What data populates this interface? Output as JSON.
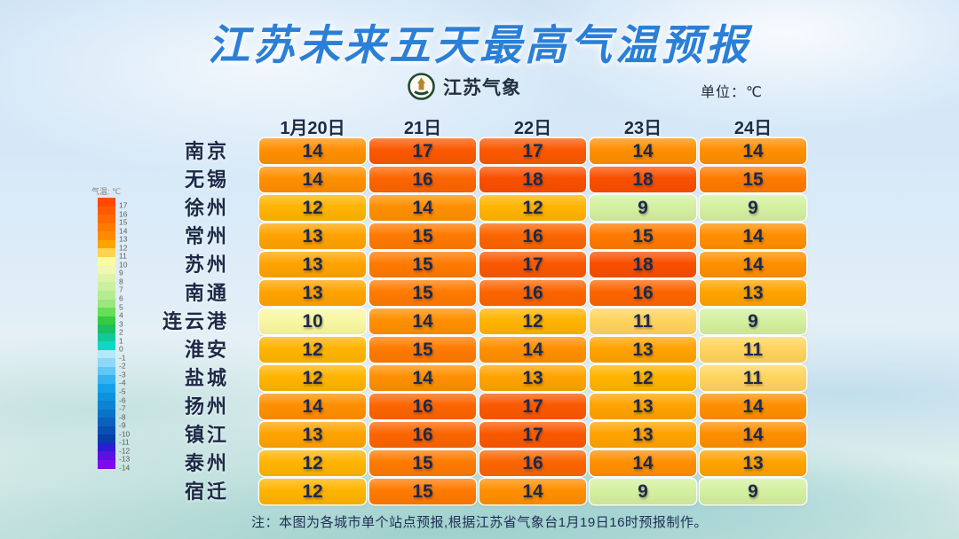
{
  "page": {
    "title": "江苏未来五天最高气温预报",
    "logo_label": "江苏气象",
    "unit_label": "单位：℃",
    "note": "注：本图为各城市单个站点预报,根据江苏省气象台1月19日16时预报制作。"
  },
  "legend": {
    "title": "气温: ℃",
    "entries": [
      {
        "label": "17",
        "color": "#ff4a00"
      },
      {
        "label": "16",
        "color": "#ff5a00"
      },
      {
        "label": "15",
        "color": "#ff6a00"
      },
      {
        "label": "14",
        "color": "#ff7b00"
      },
      {
        "label": "13",
        "color": "#ff8c00"
      },
      {
        "label": "12",
        "color": "#ffa300"
      },
      {
        "label": "11",
        "color": "#ffd24f"
      },
      {
        "label": "10",
        "color": "#fdfb9e"
      },
      {
        "label": "9",
        "color": "#eff8b2"
      },
      {
        "label": "8",
        "color": "#ddf4a8"
      },
      {
        "label": "7",
        "color": "#cbf09e"
      },
      {
        "label": "6",
        "color": "#b7eb92"
      },
      {
        "label": "5",
        "color": "#9ce680"
      },
      {
        "label": "4",
        "color": "#66de55"
      },
      {
        "label": "3",
        "color": "#35cc3f"
      },
      {
        "label": "2",
        "color": "#1dbf63"
      },
      {
        "label": "1",
        "color": "#12c998"
      },
      {
        "label": "0",
        "color": "#0ed8c5"
      },
      {
        "label": "-1",
        "color": "#b4e8fb"
      },
      {
        "label": "-2",
        "color": "#8cd8f8"
      },
      {
        "label": "-3",
        "color": "#60c6f5"
      },
      {
        "label": "-4",
        "color": "#35b2f0"
      },
      {
        "label": "-5",
        "color": "#17a1ea"
      },
      {
        "label": "-6",
        "color": "#0e92de"
      },
      {
        "label": "-7",
        "color": "#0c83d3"
      },
      {
        "label": "-8",
        "color": "#0a73c8"
      },
      {
        "label": "-9",
        "color": "#0962bd"
      },
      {
        "label": "-10",
        "color": "#0750b2"
      },
      {
        "label": "-11",
        "color": "#053fa7"
      },
      {
        "label": "-12",
        "color": "#2b1dd6"
      },
      {
        "label": "-13",
        "color": "#5b10e4"
      },
      {
        "label": "-14",
        "color": "#7f0af0"
      }
    ]
  },
  "temp_colors": {
    "9": "#d4f0a0",
    "10": "#f8f8a4",
    "11": "#ffd45e",
    "12": "#ffb400",
    "13": "#ffa300",
    "14": "#ff8f00",
    "15": "#ff7a00",
    "16": "#fc6500",
    "17": "#fb5800",
    "18": "#fa4f00"
  },
  "chart_data": {
    "type": "heatmap",
    "title": "江苏未来五天最高气温预报",
    "unit": "℃",
    "x": [
      "1月20日",
      "21日",
      "22日",
      "23日",
      "24日"
    ],
    "series": [
      {
        "name": "南京",
        "values": [
          14,
          17,
          17,
          14,
          14
        ]
      },
      {
        "name": "无锡",
        "values": [
          14,
          16,
          18,
          18,
          15
        ]
      },
      {
        "name": "徐州",
        "values": [
          12,
          14,
          12,
          9,
          9
        ]
      },
      {
        "name": "常州",
        "values": [
          13,
          15,
          16,
          15,
          14
        ]
      },
      {
        "name": "苏州",
        "values": [
          13,
          15,
          17,
          18,
          14
        ]
      },
      {
        "name": "南通",
        "values": [
          13,
          15,
          16,
          16,
          13
        ]
      },
      {
        "name": "连云港",
        "values": [
          10,
          14,
          12,
          11,
          9
        ]
      },
      {
        "name": "淮安",
        "values": [
          12,
          15,
          14,
          13,
          11
        ]
      },
      {
        "name": "盐城",
        "values": [
          12,
          14,
          13,
          12,
          11
        ]
      },
      {
        "name": "扬州",
        "values": [
          14,
          16,
          17,
          13,
          14
        ]
      },
      {
        "name": "镇江",
        "values": [
          13,
          16,
          17,
          13,
          14
        ]
      },
      {
        "name": "泰州",
        "values": [
          12,
          15,
          16,
          14,
          13
        ]
      },
      {
        "name": "宿迁",
        "values": [
          12,
          15,
          14,
          9,
          9
        ]
      }
    ],
    "legend_scale": {
      "min": -14,
      "max": 17
    },
    "layout": {
      "legend_position": "left",
      "grid": false
    }
  },
  "colors": {
    "title_blue": "#2b7fd6",
    "text_dark": "#1c2a47",
    "logo_green": "#1f4a2f"
  }
}
